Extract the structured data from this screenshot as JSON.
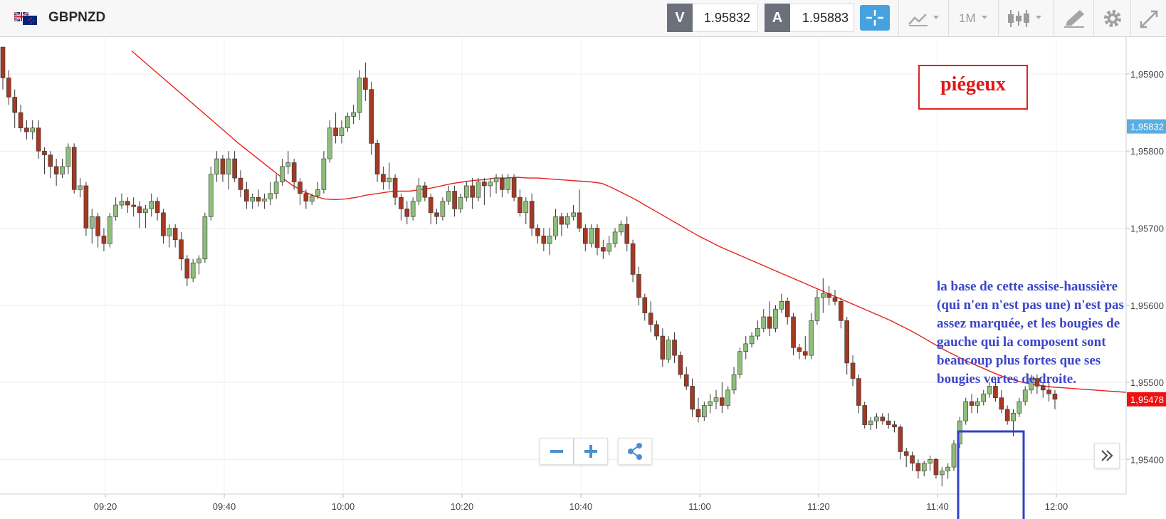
{
  "header": {
    "symbol": "GBPNZD",
    "sell_letter": "V",
    "sell_price": "1.95832",
    "buy_letter": "A",
    "buy_price": "1.95883",
    "timeframe": "1M",
    "flag_icon": "gb-nz-flag-icon",
    "accent_color": "#47a1e0"
  },
  "annotations": {
    "label_red": "piégeux",
    "text_blue": "la base de cette assise-haussière\n(qui n'en n'est pas une) n'est pas\nassez marquée, et les bougies de\ngauche qui la composent sont\nbeaucoup plus fortes que ses\nbougies vertes de droite."
  },
  "chart_data": {
    "type": "candlestick",
    "series_name": "GBPNZD",
    "x_ticks": [
      "09:20",
      "09:40",
      "10:00",
      "10:20",
      "10:40",
      "11:00",
      "11:20",
      "11:40",
      "12:00"
    ],
    "y_ticks": [
      "1,95400",
      "1,95500",
      "1,95600",
      "1,95700",
      "1,95800",
      "1,95900"
    ],
    "ylim": [
      1.95355,
      1.95948
    ],
    "current_price_tag": "1,95832",
    "last_price_tag": "1,95478",
    "up_color": "#8fbf7a",
    "down_color": "#a33a23",
    "ma_color": "#e8201c",
    "grid": true,
    "candles": [
      [
        1.95935,
        1.95935,
        1.9588,
        1.95895
      ],
      [
        1.95895,
        1.95905,
        1.9586,
        1.9587
      ],
      [
        1.9587,
        1.9588,
        1.9583,
        1.9585
      ],
      [
        1.9585,
        1.9586,
        1.95825,
        1.9583
      ],
      [
        1.9583,
        1.9584,
        1.95815,
        1.95825
      ],
      [
        1.95825,
        1.9584,
        1.95815,
        1.9583
      ],
      [
        1.9583,
        1.9584,
        1.9579,
        1.958
      ],
      [
        1.958,
        1.95805,
        1.9577,
        1.95795
      ],
      [
        1.95795,
        1.958,
        1.95765,
        1.9578
      ],
      [
        1.9578,
        1.9579,
        1.95755,
        1.9577
      ],
      [
        1.9577,
        1.9579,
        1.95765,
        1.9578
      ],
      [
        1.9578,
        1.9581,
        1.9577,
        1.95805
      ],
      [
        1.95805,
        1.9581,
        1.95745,
        1.9575
      ],
      [
        1.9575,
        1.95765,
        1.9574,
        1.95755
      ],
      [
        1.95755,
        1.9576,
        1.9569,
        1.957
      ],
      [
        1.957,
        1.95725,
        1.9568,
        1.95715
      ],
      [
        1.95715,
        1.9572,
        1.95675,
        1.9569
      ],
      [
        1.9569,
        1.957,
        1.9567,
        1.9568
      ],
      [
        1.9568,
        1.9572,
        1.95675,
        1.95715
      ],
      [
        1.95715,
        1.9574,
        1.9571,
        1.9573
      ],
      [
        1.9573,
        1.95745,
        1.95725,
        1.95735
      ],
      [
        1.95735,
        1.9574,
        1.9572,
        1.9573
      ],
      [
        1.9573,
        1.9574,
        1.95715,
        1.95728
      ],
      [
        1.95728,
        1.95735,
        1.957,
        1.9572
      ],
      [
        1.9572,
        1.9573,
        1.957,
        1.95725
      ],
      [
        1.95725,
        1.95745,
        1.95715,
        1.95735
      ],
      [
        1.95735,
        1.9574,
        1.9571,
        1.9572
      ],
      [
        1.9572,
        1.95725,
        1.9568,
        1.9569
      ],
      [
        1.9569,
        1.95705,
        1.95675,
        1.957
      ],
      [
        1.957,
        1.95705,
        1.95675,
        1.95685
      ],
      [
        1.95685,
        1.95695,
        1.95645,
        1.9566
      ],
      [
        1.9566,
        1.95665,
        1.95625,
        1.95635
      ],
      [
        1.95635,
        1.9566,
        1.9563,
        1.95655
      ],
      [
        1.95655,
        1.95665,
        1.9564,
        1.9566
      ],
      [
        1.9566,
        1.9572,
        1.95655,
        1.95715
      ],
      [
        1.95715,
        1.9578,
        1.9571,
        1.9577
      ],
      [
        1.9577,
        1.958,
        1.9576,
        1.9579
      ],
      [
        1.9579,
        1.95795,
        1.9576,
        1.9577
      ],
      [
        1.9577,
        1.958,
        1.9575,
        1.9579
      ],
      [
        1.9579,
        1.958,
        1.9576,
        1.95765
      ],
      [
        1.95765,
        1.95775,
        1.9574,
        1.9575
      ],
      [
        1.9575,
        1.9576,
        1.95725,
        1.95735
      ],
      [
        1.95735,
        1.95745,
        1.95725,
        1.9574
      ],
      [
        1.9574,
        1.9575,
        1.95728,
        1.95735
      ],
      [
        1.95735,
        1.95745,
        1.95725,
        1.95738
      ],
      [
        1.95738,
        1.9576,
        1.9573,
        1.95745
      ],
      [
        1.95745,
        1.9577,
        1.95738,
        1.9576
      ],
      [
        1.9576,
        1.9579,
        1.95755,
        1.9578
      ],
      [
        1.9578,
        1.958,
        1.9577,
        1.95785
      ],
      [
        1.95785,
        1.9579,
        1.9575,
        1.9576
      ],
      [
        1.9576,
        1.95765,
        1.9573,
        1.95745
      ],
      [
        1.95745,
        1.9575,
        1.95725,
        1.95735
      ],
      [
        1.95735,
        1.95745,
        1.9573,
        1.95742
      ],
      [
        1.95742,
        1.9576,
        1.95738,
        1.9575
      ],
      [
        1.9575,
        1.958,
        1.95745,
        1.9579
      ],
      [
        1.9579,
        1.9584,
        1.95785,
        1.9583
      ],
      [
        1.9583,
        1.9585,
        1.9581,
        1.9582
      ],
      [
        1.9582,
        1.9584,
        1.9581,
        1.9583
      ],
      [
        1.9583,
        1.9585,
        1.95825,
        1.95845
      ],
      [
        1.95845,
        1.9586,
        1.95835,
        1.9585
      ],
      [
        1.9585,
        1.95905,
        1.9584,
        1.95895
      ],
      [
        1.95895,
        1.95915,
        1.95865,
        1.9588
      ],
      [
        1.9588,
        1.9589,
        1.95795,
        1.9581
      ],
      [
        1.9581,
        1.95815,
        1.9576,
        1.9577
      ],
      [
        1.9577,
        1.9578,
        1.9575,
        1.9576
      ],
      [
        1.9576,
        1.95785,
        1.9575,
        1.95765
      ],
      [
        1.95765,
        1.9577,
        1.9573,
        1.9574
      ],
      [
        1.9574,
        1.95745,
        1.9571,
        1.95725
      ],
      [
        1.95725,
        1.95735,
        1.95705,
        1.95715
      ],
      [
        1.95715,
        1.9574,
        1.9571,
        1.95735
      ],
      [
        1.95735,
        1.95765,
        1.9573,
        1.95755
      ],
      [
        1.95755,
        1.9576,
        1.95735,
        1.9574
      ],
      [
        1.9574,
        1.95745,
        1.95705,
        1.9572
      ],
      [
        1.9572,
        1.95725,
        1.95705,
        1.95715
      ],
      [
        1.95715,
        1.9574,
        1.9571,
        1.95735
      ],
      [
        1.95735,
        1.95755,
        1.9573,
        1.95748
      ],
      [
        1.95748,
        1.95755,
        1.95715,
        1.95725
      ],
      [
        1.95725,
        1.95745,
        1.9572,
        1.9574
      ],
      [
        1.9574,
        1.9576,
        1.95735,
        1.95755
      ],
      [
        1.95755,
        1.95765,
        1.95725,
        1.9574
      ],
      [
        1.9574,
        1.95765,
        1.95735,
        1.9576
      ],
      [
        1.9576,
        1.95765,
        1.9573,
        1.95755
      ],
      [
        1.95755,
        1.95765,
        1.9574,
        1.9576
      ],
      [
        1.9576,
        1.9577,
        1.95745,
        1.95765
      ],
      [
        1.95765,
        1.9577,
        1.9574,
        1.9575
      ],
      [
        1.9575,
        1.9577,
        1.95745,
        1.95765
      ],
      [
        1.95765,
        1.9577,
        1.95735,
        1.9574
      ],
      [
        1.9574,
        1.9575,
        1.95715,
        1.9572
      ],
      [
        1.9572,
        1.9574,
        1.95705,
        1.95735
      ],
      [
        1.95735,
        1.95745,
        1.9569,
        1.957
      ],
      [
        1.957,
        1.95705,
        1.9568,
        1.9569
      ],
      [
        1.9569,
        1.957,
        1.9567,
        1.9568
      ],
      [
        1.9568,
        1.957,
        1.95665,
        1.9569
      ],
      [
        1.9569,
        1.95725,
        1.95685,
        1.95715
      ],
      [
        1.95715,
        1.9572,
        1.9569,
        1.95705
      ],
      [
        1.95705,
        1.9572,
        1.957,
        1.95715
      ],
      [
        1.95715,
        1.9573,
        1.9571,
        1.9572
      ],
      [
        1.9572,
        1.9575,
        1.95695,
        1.957
      ],
      [
        1.957,
        1.95705,
        1.9567,
        1.9568
      ],
      [
        1.9568,
        1.95705,
        1.95675,
        1.957
      ],
      [
        1.957,
        1.95705,
        1.95665,
        1.95675
      ],
      [
        1.95675,
        1.95685,
        1.9566,
        1.9567
      ],
      [
        1.9567,
        1.9569,
        1.95665,
        1.9568
      ],
      [
        1.9568,
        1.957,
        1.95675,
        1.95695
      ],
      [
        1.95695,
        1.9571,
        1.9569,
        1.95705
      ],
      [
        1.95705,
        1.95715,
        1.9567,
        1.9568
      ],
      [
        1.9568,
        1.95685,
        1.9563,
        1.9564
      ],
      [
        1.9564,
        1.9565,
        1.956,
        1.9561
      ],
      [
        1.9561,
        1.95615,
        1.9558,
        1.9559
      ],
      [
        1.9559,
        1.95605,
        1.95565,
        1.95575
      ],
      [
        1.95575,
        1.9558,
        1.95555,
        1.9556
      ],
      [
        1.9556,
        1.9557,
        1.9552,
        1.9553
      ],
      [
        1.9553,
        1.9556,
        1.95525,
        1.95555
      ],
      [
        1.95555,
        1.95565,
        1.95525,
        1.95535
      ],
      [
        1.95535,
        1.9554,
        1.95505,
        1.9551
      ],
      [
        1.9551,
        1.9552,
        1.9549,
        1.95495
      ],
      [
        1.95495,
        1.95505,
        1.95455,
        1.95465
      ],
      [
        1.95465,
        1.9548,
        1.95448,
        1.95455
      ],
      [
        1.95455,
        1.95475,
        1.9545,
        1.9547
      ],
      [
        1.9547,
        1.95485,
        1.9546,
        1.95475
      ],
      [
        1.95475,
        1.9549,
        1.95465,
        1.9548
      ],
      [
        1.9548,
        1.955,
        1.9546,
        1.9547
      ],
      [
        1.9547,
        1.95495,
        1.95465,
        1.9549
      ],
      [
        1.9549,
        1.9552,
        1.95485,
        1.9551
      ],
      [
        1.9551,
        1.95545,
        1.95505,
        1.9554
      ],
      [
        1.9554,
        1.9556,
        1.9553,
        1.9555
      ],
      [
        1.9555,
        1.95565,
        1.95545,
        1.9556
      ],
      [
        1.9556,
        1.9558,
        1.95555,
        1.9557
      ],
      [
        1.9557,
        1.95595,
        1.95565,
        1.95585
      ],
      [
        1.95585,
        1.95605,
        1.9556,
        1.9557
      ],
      [
        1.9557,
        1.956,
        1.95565,
        1.95595
      ],
      [
        1.95595,
        1.95615,
        1.9559,
        1.95605
      ],
      [
        1.95605,
        1.9561,
        1.95575,
        1.95585
      ],
      [
        1.95585,
        1.9559,
        1.95535,
        1.95545
      ],
      [
        1.95545,
        1.9555,
        1.9553,
        1.9554
      ],
      [
        1.9554,
        1.9556,
        1.9553,
        1.95535
      ],
      [
        1.95535,
        1.9559,
        1.9553,
        1.9558
      ],
      [
        1.9558,
        1.9562,
        1.95575,
        1.9561
      ],
      [
        1.9561,
        1.95635,
        1.9559,
        1.95615
      ],
      [
        1.95615,
        1.95625,
        1.956,
        1.9561
      ],
      [
        1.9561,
        1.9562,
        1.956,
        1.95605
      ],
      [
        1.95605,
        1.9561,
        1.9557,
        1.9558
      ],
      [
        1.9558,
        1.95585,
        1.9551,
        1.95525
      ],
      [
        1.95525,
        1.95535,
        1.95495,
        1.95505
      ],
      [
        1.95505,
        1.9551,
        1.9546,
        1.9547
      ],
      [
        1.9547,
        1.95475,
        1.9544,
        1.95445
      ],
      [
        1.95445,
        1.95455,
        1.95438,
        1.9545
      ],
      [
        1.9545,
        1.9546,
        1.9544,
        1.95455
      ],
      [
        1.95455,
        1.9546,
        1.95445,
        1.9545
      ],
      [
        1.9545,
        1.9546,
        1.9544,
        1.95445
      ],
      [
        1.95445,
        1.9545,
        1.95435,
        1.95442
      ],
      [
        1.95442,
        1.95445,
        1.954,
        1.9541
      ],
      [
        1.9541,
        1.95415,
        1.9539,
        1.95405
      ],
      [
        1.95405,
        1.9541,
        1.95385,
        1.95395
      ],
      [
        1.95395,
        1.954,
        1.95375,
        1.95385
      ],
      [
        1.95385,
        1.95398,
        1.95378,
        1.95395
      ],
      [
        1.95395,
        1.95405,
        1.95385,
        1.954
      ],
      [
        1.954,
        1.95402,
        1.95375,
        1.9538
      ],
      [
        1.9538,
        1.9539,
        1.95365,
        1.95385
      ],
      [
        1.95385,
        1.95395,
        1.95375,
        1.9539
      ],
      [
        1.9539,
        1.95425,
        1.95385,
        1.9542
      ],
      [
        1.9542,
        1.95455,
        1.95415,
        1.9545
      ],
      [
        1.9545,
        1.9548,
        1.95445,
        1.95475
      ],
      [
        1.95475,
        1.95485,
        1.9546,
        1.9547
      ],
      [
        1.9547,
        1.9548,
        1.9546,
        1.95475
      ],
      [
        1.95475,
        1.9549,
        1.9547,
        1.95485
      ],
      [
        1.95485,
        1.955,
        1.9548,
        1.95495
      ],
      [
        1.95495,
        1.95505,
        1.95475,
        1.9548
      ],
      [
        1.9548,
        1.9549,
        1.9546,
        1.95465
      ],
      [
        1.95465,
        1.9547,
        1.95445,
        1.9545
      ],
      [
        1.9545,
        1.95465,
        1.9543,
        1.9546
      ],
      [
        1.9546,
        1.9548,
        1.95455,
        1.95475
      ],
      [
        1.95475,
        1.95495,
        1.9547,
        1.9549
      ],
      [
        1.9549,
        1.9551,
        1.95485,
        1.95505
      ],
      [
        1.95505,
        1.9551,
        1.95485,
        1.95495
      ],
      [
        1.95495,
        1.955,
        1.9548,
        1.9549
      ],
      [
        1.9549,
        1.955,
        1.95475,
        1.95485
      ],
      [
        1.95485,
        1.9549,
        1.95465,
        1.95478
      ]
    ],
    "moving_average": [
      1.9593,
      1.95918,
      1.95906,
      1.95894,
      1.95882,
      1.9587,
      1.95858,
      1.95846,
      1.95834,
      1.95822,
      1.9581,
      1.95799,
      1.95788,
      1.95777,
      1.95766,
      1.95756,
      1.95748,
      1.95742,
      1.95738,
      1.95737,
      1.95738,
      1.9574,
      1.95743,
      1.95745,
      1.95747,
      1.95748,
      1.95748,
      1.9575,
      1.95752,
      1.95755,
      1.95758,
      1.9576,
      1.95762,
      1.95763,
      1.95765,
      1.95765,
      1.95766,
      1.95765,
      1.95765,
      1.95764,
      1.95763,
      1.95762,
      1.95761,
      1.9576,
      1.95758,
      1.95752,
      1.95745,
      1.95738,
      1.9573,
      1.95722,
      1.95714,
      1.95706,
      1.95698,
      1.9569,
      1.95683,
      1.95676,
      1.9567,
      1.95664,
      1.95658,
      1.95652,
      1.95646,
      1.9564,
      1.95634,
      1.95628,
      1.95622,
      1.95616,
      1.9561,
      1.95604,
      1.95598,
      1.95592,
      1.95586,
      1.9558,
      1.95573,
      1.95566,
      1.95558,
      1.9555,
      1.95542,
      1.95535,
      1.95528,
      1.95522,
      1.95516,
      1.9551,
      1.95505,
      1.95501,
      1.95498,
      1.95496,
      1.95494,
      1.95493,
      1.95492,
      1.95491,
      1.9549,
      1.95489,
      1.95488,
      1.95487
    ]
  }
}
